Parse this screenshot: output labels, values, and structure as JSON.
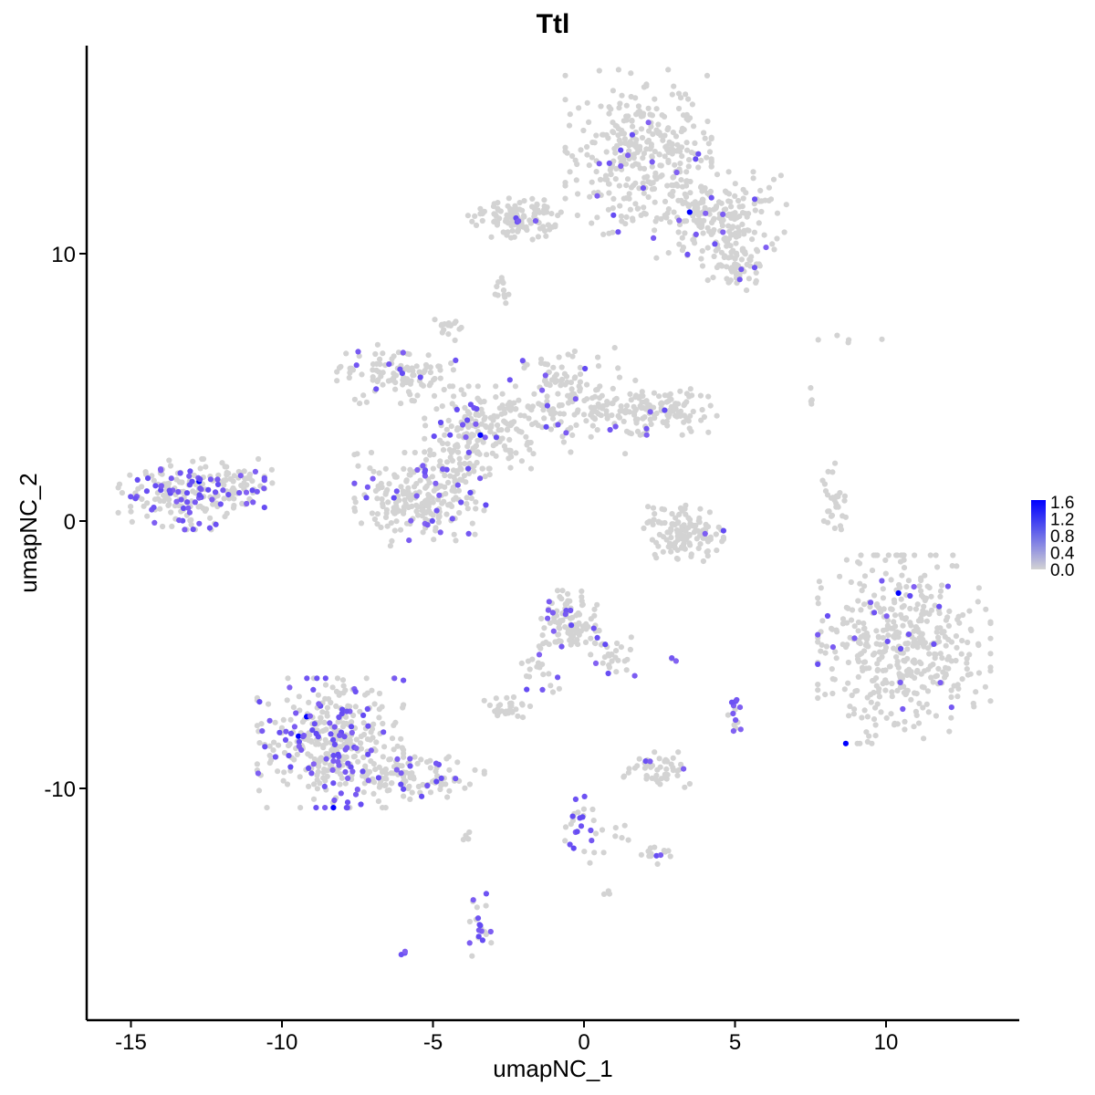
{
  "chart_data": {
    "type": "scatter",
    "title": "Ttl",
    "xlabel": "umapNC_1",
    "ylabel": "umapNC_2",
    "xlim": [
      -16.5,
      14.5
    ],
    "ylim": [
      -18.5,
      17.8
    ],
    "x_ticks": [
      -15,
      -10,
      -5,
      0,
      5,
      10
    ],
    "x_tick_labels": [
      "-15",
      "-10",
      "-5",
      "0",
      "5",
      "10"
    ],
    "y_ticks": [
      -10,
      0,
      10
    ],
    "y_tick_labels": [
      "-10",
      "0",
      "10"
    ],
    "grid": false,
    "legend": {
      "placement": "right",
      "type": "colorbar",
      "range": [
        0.0,
        1.6
      ],
      "labels": [
        "1.6",
        "1.2",
        "0.8",
        "0.4",
        "0.0"
      ],
      "low_color": "#d3d3d3",
      "high_color": "#0000ff"
    },
    "point_color_low": "#d3d3d3",
    "point_color_high": "#0000ff",
    "clusters": [
      {
        "cx": 1.8,
        "cy": 13.8,
        "sx": 1.1,
        "sy": 1.4,
        "n": 340,
        "frac": 0.04
      },
      {
        "cx": 4.5,
        "cy": 11.3,
        "sx": 1.0,
        "sy": 0.8,
        "n": 200,
        "frac": 0.05
      },
      {
        "cx": 5.2,
        "cy": 9.6,
        "sx": 0.5,
        "sy": 0.5,
        "n": 60,
        "frac": 0.05
      },
      {
        "cx": -2.3,
        "cy": 11.3,
        "sx": 0.7,
        "sy": 0.35,
        "n": 120,
        "frac": 0.04
      },
      {
        "cx": -2.7,
        "cy": 8.7,
        "sx": 0.15,
        "sy": 0.25,
        "n": 12,
        "frac": 0.0
      },
      {
        "cx": -4.5,
        "cy": 7.2,
        "sx": 0.2,
        "sy": 0.2,
        "n": 15,
        "frac": 0.1
      },
      {
        "cx": -6.2,
        "cy": 5.5,
        "sx": 0.9,
        "sy": 0.5,
        "n": 110,
        "frac": 0.05
      },
      {
        "cx": -3.3,
        "cy": 3.5,
        "sx": 0.9,
        "sy": 0.7,
        "n": 170,
        "frac": 0.1
      },
      {
        "cx": -0.5,
        "cy": 4.5,
        "sx": 1.0,
        "sy": 0.9,
        "n": 150,
        "frac": 0.08
      },
      {
        "cx": 2.2,
        "cy": 4.1,
        "sx": 1.0,
        "sy": 0.4,
        "n": 130,
        "frac": 0.05
      },
      {
        "cx": -5.4,
        "cy": 0.8,
        "sx": 1.0,
        "sy": 0.8,
        "n": 210,
        "frac": 0.07
      },
      {
        "cx": -4.0,
        "cy": 2.0,
        "sx": 0.4,
        "sy": 0.7,
        "n": 60,
        "frac": 0.15
      },
      {
        "cx": -13.0,
        "cy": 1.0,
        "sx": 1.1,
        "sy": 0.6,
        "n": 220,
        "frac": 0.25
      },
      {
        "cx": -11.3,
        "cy": 1.5,
        "sx": 0.5,
        "sy": 0.3,
        "n": 30,
        "frac": 0.15
      },
      {
        "cx": 3.3,
        "cy": -0.4,
        "sx": 0.6,
        "sy": 0.5,
        "n": 130,
        "frac": 0.03
      },
      {
        "cx": 8.3,
        "cy": 0.4,
        "sx": 0.2,
        "sy": 0.8,
        "n": 30,
        "frac": 0.0
      },
      {
        "cx": 10.6,
        "cy": -4.8,
        "sx": 1.3,
        "sy": 1.6,
        "n": 460,
        "frac": 0.03
      },
      {
        "cx": -8.4,
        "cy": -8.3,
        "sx": 1.1,
        "sy": 1.1,
        "n": 380,
        "frac": 0.22
      },
      {
        "cx": -5.5,
        "cy": -9.6,
        "sx": 1.0,
        "sy": 0.4,
        "n": 110,
        "frac": 0.15
      },
      {
        "cx": -0.5,
        "cy": -3.7,
        "sx": 0.5,
        "sy": 0.5,
        "n": 100,
        "frac": 0.12
      },
      {
        "cx": 0.8,
        "cy": -5.0,
        "sx": 0.4,
        "sy": 0.5,
        "n": 30,
        "frac": 0.1
      },
      {
        "cx": -1.4,
        "cy": -5.5,
        "sx": 0.3,
        "sy": 0.6,
        "n": 25,
        "frac": 0.1
      },
      {
        "cx": -2.6,
        "cy": -6.9,
        "sx": 0.4,
        "sy": 0.2,
        "n": 30,
        "frac": 0.0
      },
      {
        "cx": 2.4,
        "cy": -9.3,
        "sx": 0.5,
        "sy": 0.3,
        "n": 55,
        "frac": 0.08
      },
      {
        "cx": 5.0,
        "cy": -7.3,
        "sx": 0.15,
        "sy": 0.3,
        "n": 14,
        "frac": 0.7
      },
      {
        "cx": -0.2,
        "cy": -11.6,
        "sx": 0.3,
        "sy": 0.6,
        "n": 25,
        "frac": 0.45
      },
      {
        "cx": 2.2,
        "cy": -12.5,
        "sx": 0.3,
        "sy": 0.15,
        "n": 14,
        "frac": 0.15
      },
      {
        "cx": -3.5,
        "cy": -15.2,
        "sx": 0.2,
        "sy": 0.6,
        "n": 22,
        "frac": 0.4
      },
      {
        "cx": -6.0,
        "cy": -16.2,
        "sx": 0.1,
        "sy": 0.1,
        "n": 3,
        "frac": 1.0
      },
      {
        "cx": 9.0,
        "cy": 6.7,
        "sx": 0.6,
        "sy": 0.2,
        "n": 5,
        "frac": 0.0
      },
      {
        "cx": 7.6,
        "cy": 4.6,
        "sx": 0.1,
        "sy": 0.2,
        "n": 4,
        "frac": 0.0
      },
      {
        "cx": 0.5,
        "cy": -11.8,
        "sx": 0.6,
        "sy": 0.3,
        "n": 10,
        "frac": 0.0
      },
      {
        "cx": 0.7,
        "cy": -14.0,
        "sx": 0.1,
        "sy": 0.1,
        "n": 3,
        "frac": 0.0
      },
      {
        "cx": 2.9,
        "cy": -5.1,
        "sx": 0.1,
        "sy": 0.1,
        "n": 3,
        "frac": 0.5
      },
      {
        "cx": -3.9,
        "cy": -11.7,
        "sx": 0.1,
        "sy": 0.2,
        "n": 4,
        "frac": 0.0
      }
    ]
  }
}
